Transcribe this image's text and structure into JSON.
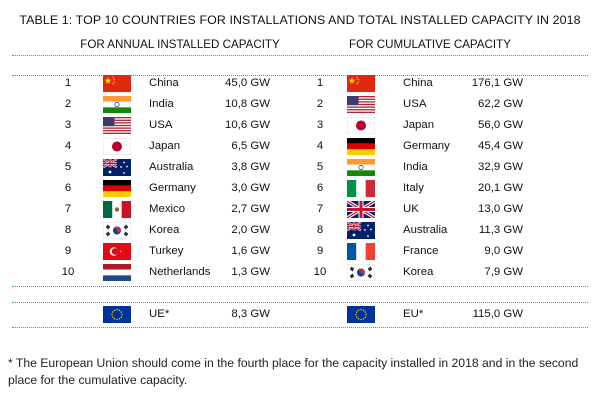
{
  "title": "TABLE 1: TOP 10 COUNTRIES FOR INSTALLATIONS AND TOTAL INSTALLED CAPACITY IN 2018",
  "colors": {
    "rule": "#2d9ad4"
  },
  "annual": {
    "heading": "FOR ANNUAL INSTALLED CAPACITY",
    "rows": [
      {
        "rank": "1",
        "flag": "china-flag-icon",
        "country": "China",
        "value": "45,0 GW"
      },
      {
        "rank": "2",
        "flag": "india-flag-icon",
        "country": "India",
        "value": "10,8 GW"
      },
      {
        "rank": "3",
        "flag": "usa-flag-icon",
        "country": "USA",
        "value": "10,6 GW"
      },
      {
        "rank": "4",
        "flag": "japan-flag-icon",
        "country": "Japan",
        "value": "6,5 GW"
      },
      {
        "rank": "5",
        "flag": "australia-flag-icon",
        "country": "Australia",
        "value": "3,8 GW"
      },
      {
        "rank": "6",
        "flag": "germany-flag-icon",
        "country": "Germany",
        "value": "3,0 GW"
      },
      {
        "rank": "7",
        "flag": "mexico-flag-icon",
        "country": "Mexico",
        "value": "2,7 GW"
      },
      {
        "rank": "8",
        "flag": "korea-flag-icon",
        "country": "Korea",
        "value": "2,0 GW"
      },
      {
        "rank": "9",
        "flag": "turkey-flag-icon",
        "country": "Turkey",
        "value": "1,6 GW"
      },
      {
        "rank": "10",
        "flag": "netherlands-flag-icon",
        "country": "Netherlands",
        "value": "1,3 GW"
      }
    ],
    "eu": {
      "flag": "eu-flag-icon",
      "country": "UE*",
      "value": "8,3 GW"
    }
  },
  "cumulative": {
    "heading": "FOR CUMULATIVE CAPACITY",
    "rows": [
      {
        "rank": "1",
        "flag": "china-flag-icon",
        "country": "China",
        "value": "176,1 GW"
      },
      {
        "rank": "2",
        "flag": "usa-flag-icon",
        "country": "USA",
        "value": "62,2 GW"
      },
      {
        "rank": "3",
        "flag": "japan-flag-icon",
        "country": "Japan",
        "value": "56,0 GW"
      },
      {
        "rank": "4",
        "flag": "germany-flag-icon",
        "country": "Germany",
        "value": "45,4 GW"
      },
      {
        "rank": "5",
        "flag": "india-flag-icon",
        "country": "India",
        "value": "32,9 GW"
      },
      {
        "rank": "6",
        "flag": "italy-flag-icon",
        "country": "Italy",
        "value": "20,1 GW"
      },
      {
        "rank": "7",
        "flag": "uk-flag-icon",
        "country": "UK",
        "value": "13,0 GW"
      },
      {
        "rank": "8",
        "flag": "australia-flag-icon",
        "country": "Australia",
        "value": "11,3 GW"
      },
      {
        "rank": "9",
        "flag": "france-flag-icon",
        "country": "France",
        "value": "9,0 GW"
      },
      {
        "rank": "10",
        "flag": "korea-flag-icon",
        "country": "Korea",
        "value": "7,9 GW"
      }
    ],
    "eu": {
      "flag": "eu-flag-icon",
      "country": "EU*",
      "value": "115,0 GW"
    }
  },
  "footnote": "* The European Union should come in the fourth place for the capacity installed in 2018 and in the second place for the cumulative capacity."
}
